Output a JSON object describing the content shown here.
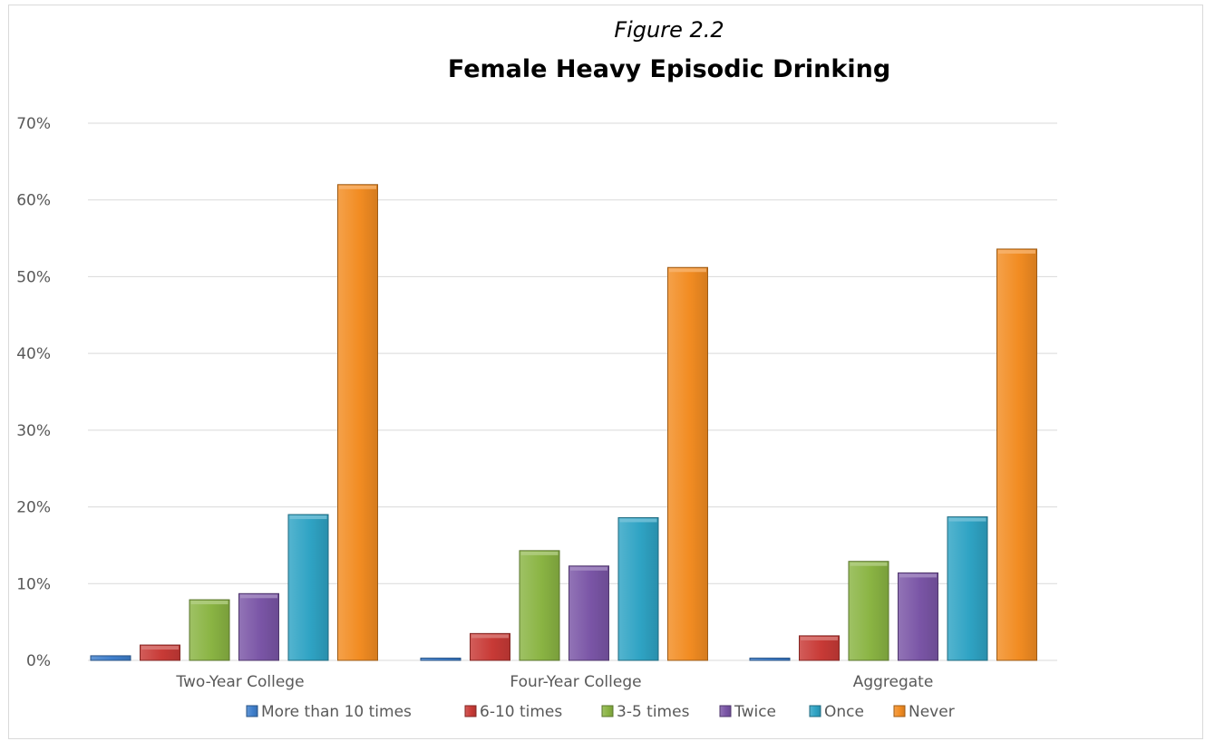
{
  "chart_data": {
    "type": "bar",
    "subtitle": "Figure 2.2",
    "title": "Female Heavy Episodic Drinking",
    "xlabel": "",
    "ylabel": "",
    "ylim": [
      0,
      70
    ],
    "yticks": [
      "0%",
      "10%",
      "20%",
      "30%",
      "40%",
      "50%",
      "60%",
      "70%"
    ],
    "grid": true,
    "legend_position": "bottom",
    "categories": [
      "Two-Year College",
      "Four-Year College",
      "Aggregate"
    ],
    "series": [
      {
        "name": "More than 10 times",
        "color": "#3f7fcc",
        "values": [
          0.6,
          0.3,
          0.3
        ]
      },
      {
        "name": "6-10 times",
        "color": "#c83a36",
        "values": [
          2.0,
          3.5,
          3.2
        ]
      },
      {
        "name": "3-5 times",
        "color": "#8ab443",
        "values": [
          7.9,
          14.3,
          12.9
        ]
      },
      {
        "name": "Twice",
        "color": "#7a55a6",
        "values": [
          8.7,
          12.3,
          11.4
        ]
      },
      {
        "name": "Once",
        "color": "#2fa3c4",
        "values": [
          19.0,
          18.6,
          18.7
        ]
      },
      {
        "name": "Never",
        "color": "#f28c22",
        "values": [
          62.0,
          51.2,
          53.6
        ]
      }
    ]
  }
}
